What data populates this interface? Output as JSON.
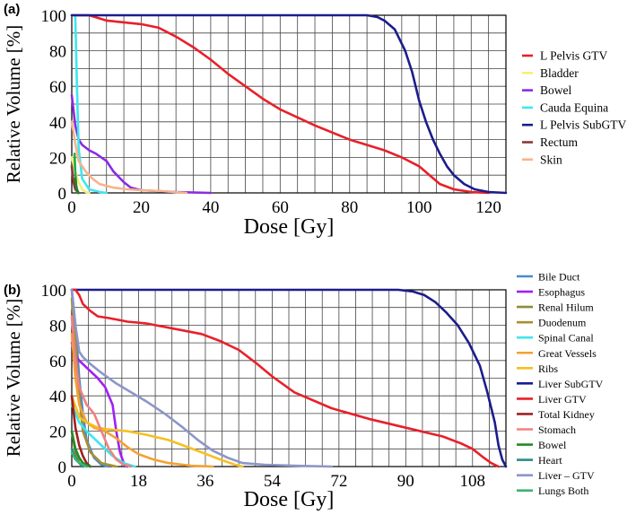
{
  "chart_data": [
    {
      "panel_label": "(a)",
      "type": "line",
      "xlabel": "Dose [Gy]",
      "ylabel": "Relative Volume [%]",
      "xlim": [
        0,
        125
      ],
      "ylim": [
        0,
        100
      ],
      "xticks": [
        0,
        20,
        40,
        60,
        80,
        100,
        120
      ],
      "yticks": [
        0,
        20,
        40,
        60,
        80,
        100
      ],
      "x_grid_step": 5,
      "y_grid_step": 10,
      "grid": true,
      "legend_position": "right",
      "series": [
        {
          "name": "L Pelvis GTV",
          "color": "#e8202a",
          "points": [
            [
              0,
              100
            ],
            [
              5,
              100
            ],
            [
              10,
              97
            ],
            [
              20,
              95
            ],
            [
              25,
              93
            ],
            [
              30,
              88
            ],
            [
              35,
              82
            ],
            [
              40,
              75
            ],
            [
              45,
              67
            ],
            [
              50,
              60
            ],
            [
              55,
              53
            ],
            [
              60,
              47
            ],
            [
              70,
              38
            ],
            [
              80,
              30
            ],
            [
              90,
              24
            ],
            [
              95,
              20
            ],
            [
              100,
              15
            ],
            [
              103,
              10
            ],
            [
              106,
              5
            ],
            [
              110,
              2
            ],
            [
              115,
              0.5
            ],
            [
              120,
              0
            ]
          ]
        },
        {
          "name": "Bladder",
          "color": "#f2f07a",
          "points": [
            [
              0,
              20
            ],
            [
              1,
              12
            ],
            [
              2,
              6
            ],
            [
              3,
              2
            ],
            [
              4,
              0.5
            ],
            [
              5,
              0
            ]
          ]
        },
        {
          "name": "Bowel",
          "color": "#8a2be2",
          "points": [
            [
              0,
              55
            ],
            [
              1,
              38
            ],
            [
              2,
              30
            ],
            [
              3,
              27
            ],
            [
              5,
              24
            ],
            [
              7,
              22
            ],
            [
              10,
              18
            ],
            [
              12,
              12
            ],
            [
              15,
              6
            ],
            [
              17,
              3
            ],
            [
              20,
              1.5
            ],
            [
              25,
              1
            ],
            [
              30,
              0.5
            ],
            [
              40,
              0
            ]
          ]
        },
        {
          "name": "Cauda Equina",
          "color": "#3ee6ee",
          "points": [
            [
              0,
              100
            ],
            [
              1,
              100
            ],
            [
              1.5,
              60
            ],
            [
              2,
              25
            ],
            [
              3,
              8
            ],
            [
              5,
              2
            ],
            [
              8,
              0.5
            ],
            [
              10,
              0
            ]
          ]
        },
        {
          "name": "L Pelvis SubGTV",
          "color": "#1c1c8c",
          "points": [
            [
              0,
              100
            ],
            [
              85,
              100
            ],
            [
              88,
              99
            ],
            [
              90,
              97
            ],
            [
              93,
              92
            ],
            [
              96,
              80
            ],
            [
              98,
              68
            ],
            [
              100,
              52
            ],
            [
              102,
              40
            ],
            [
              104,
              30
            ],
            [
              106,
              22
            ],
            [
              108,
              15
            ],
            [
              110,
              10
            ],
            [
              113,
              5
            ],
            [
              116,
              2
            ],
            [
              120,
              0.5
            ],
            [
              125,
              0
            ]
          ]
        },
        {
          "name": "Rectum",
          "color": "#8b3a3a",
          "points": [
            [
              0,
              15
            ],
            [
              0.5,
              6
            ],
            [
              1,
              2
            ],
            [
              2,
              0
            ]
          ]
        },
        {
          "name": "Skin",
          "color": "#f5b48c",
          "points": [
            [
              0,
              40
            ],
            [
              1,
              28
            ],
            [
              2,
              18
            ],
            [
              4,
              12
            ],
            [
              6,
              8
            ],
            [
              8,
              5
            ],
            [
              12,
              3
            ],
            [
              16,
              2
            ],
            [
              20,
              1.5
            ],
            [
              26,
              1
            ],
            [
              33,
              0
            ]
          ]
        },
        {
          "color": "#22aa44",
          "points": [
            [
              0.8,
              22
            ],
            [
              1,
              12
            ],
            [
              1.3,
              4
            ],
            [
              1.8,
              0
            ]
          ]
        },
        {
          "color": "#2a7a2a",
          "points": [
            [
              1,
              8
            ],
            [
              1.4,
              2
            ],
            [
              2,
              0
            ]
          ]
        }
      ]
    },
    {
      "panel_label": "(b)",
      "type": "line",
      "xlabel": "Dose [Gy]",
      "ylabel": "Relative Volume [%]",
      "xlim": [
        0,
        117
      ],
      "ylim": [
        0,
        100
      ],
      "xticks": [
        0,
        18,
        36,
        54,
        72,
        90,
        108
      ],
      "yticks": [
        0,
        20,
        40,
        60,
        80,
        100
      ],
      "x_grid_step": 4.5,
      "y_grid_step": 10,
      "grid": true,
      "legend_position": "right",
      "series": [
        {
          "name": "Bile Duct",
          "color": "#4a8ad0",
          "points": [
            [
              0,
              100
            ],
            [
              1,
              80
            ],
            [
              2,
              50
            ],
            [
              3,
              30
            ],
            [
              4,
              15
            ],
            [
              6,
              5
            ],
            [
              8,
              1
            ],
            [
              10,
              0
            ]
          ]
        },
        {
          "name": "Esophagus",
          "color": "#a020f0",
          "points": [
            [
              0,
              70
            ],
            [
              1,
              63
            ],
            [
              2,
              60
            ],
            [
              4,
              56
            ],
            [
              7,
              50
            ],
            [
              9,
              45
            ],
            [
              11,
              35
            ],
            [
              12,
              20
            ],
            [
              13,
              8
            ],
            [
              14,
              2
            ],
            [
              15,
              0
            ]
          ]
        },
        {
          "name": "Renal Hilum",
          "color": "#8c8c3a",
          "points": [
            [
              0,
              20
            ],
            [
              1,
              8
            ],
            [
              2,
              2
            ],
            [
              3,
              0
            ]
          ]
        },
        {
          "name": "Duodenum",
          "color": "#a89030",
          "points": [
            [
              0,
              95
            ],
            [
              1,
              70
            ],
            [
              2,
              40
            ],
            [
              3,
              20
            ],
            [
              5,
              8
            ],
            [
              8,
              2
            ],
            [
              12,
              0
            ]
          ]
        },
        {
          "name": "Spinal Canal",
          "color": "#3ee6ee",
          "points": [
            [
              0,
              35
            ],
            [
              2,
              25
            ],
            [
              4,
              20
            ],
            [
              8,
              12
            ],
            [
              11,
              6
            ],
            [
              14,
              2
            ],
            [
              17,
              0
            ]
          ]
        },
        {
          "name": "Great Vessels",
          "color": "#f5a030",
          "points": [
            [
              0,
              75
            ],
            [
              1,
              50
            ],
            [
              2,
              35
            ],
            [
              4,
              25
            ],
            [
              6,
              22
            ],
            [
              9,
              20
            ],
            [
              12,
              16
            ],
            [
              15,
              11
            ],
            [
              18,
              7
            ],
            [
              22,
              4
            ],
            [
              26,
              2
            ],
            [
              32,
              0.5
            ],
            [
              38,
              0
            ]
          ]
        },
        {
          "name": "Ribs",
          "color": "#f5c020",
          "points": [
            [
              0,
              40
            ],
            [
              2,
              28
            ],
            [
              4,
              25
            ],
            [
              7,
              22
            ],
            [
              10,
              21
            ],
            [
              15,
              20
            ],
            [
              20,
              18
            ],
            [
              26,
              15
            ],
            [
              30,
              12
            ],
            [
              35,
              8
            ],
            [
              40,
              4
            ],
            [
              44,
              1
            ],
            [
              46,
              0
            ]
          ]
        },
        {
          "name": "Liver SubGTV",
          "color": "#1c1c8c",
          "points": [
            [
              0,
              100
            ],
            [
              88,
              100
            ],
            [
              92,
              99
            ],
            [
              95,
              97
            ],
            [
              98,
              93
            ],
            [
              101,
              87
            ],
            [
              104,
              80
            ],
            [
              107,
              70
            ],
            [
              110,
              57
            ],
            [
              112,
              42
            ],
            [
              114,
              25
            ],
            [
              115,
              12
            ],
            [
              116,
              4
            ],
            [
              117,
              0
            ]
          ]
        },
        {
          "name": "Liver GTV",
          "color": "#e8202a",
          "points": [
            [
              0,
              100
            ],
            [
              1,
              100
            ],
            [
              2,
              97
            ],
            [
              3,
              92
            ],
            [
              5,
              88
            ],
            [
              7,
              85
            ],
            [
              10,
              84
            ],
            [
              15,
              82
            ],
            [
              20,
              81
            ],
            [
              25,
              79
            ],
            [
              30,
              77
            ],
            [
              35,
              75
            ],
            [
              40,
              71
            ],
            [
              45,
              66
            ],
            [
              50,
              58
            ],
            [
              54,
              51
            ],
            [
              60,
              42
            ],
            [
              70,
              33
            ],
            [
              80,
              27
            ],
            [
              90,
              22
            ],
            [
              100,
              17
            ],
            [
              105,
              13
            ],
            [
              108,
              10
            ],
            [
              111,
              5
            ],
            [
              113,
              2
            ],
            [
              115,
              0
            ]
          ]
        },
        {
          "name": "Total Kidney",
          "color": "#a02020",
          "points": [
            [
              0,
              40
            ],
            [
              1,
              22
            ],
            [
              2,
              12
            ],
            [
              3,
              6
            ],
            [
              4,
              2
            ],
            [
              5,
              0
            ]
          ]
        },
        {
          "name": "Stomach",
          "color": "#f08080",
          "points": [
            [
              0,
              85
            ],
            [
              1,
              60
            ],
            [
              2,
              45
            ],
            [
              4,
              35
            ],
            [
              6,
              30
            ],
            [
              8,
              20
            ],
            [
              10,
              10
            ],
            [
              12,
              4
            ],
            [
              14,
              1
            ],
            [
              16,
              0
            ]
          ]
        },
        {
          "name": "Bowel",
          "color": "#228b22",
          "points": [
            [
              0,
              20
            ],
            [
              1,
              10
            ],
            [
              2,
              5
            ],
            [
              3,
              2
            ],
            [
              5,
              0
            ]
          ]
        },
        {
          "name": "Heart",
          "color": "#2e8b8b",
          "points": [
            [
              0,
              10
            ],
            [
              1,
              5
            ],
            [
              2,
              2
            ],
            [
              3,
              0
            ]
          ]
        },
        {
          "name": "Liver – GTV",
          "color": "#8c96c8",
          "points": [
            [
              0,
              100
            ],
            [
              1,
              80
            ],
            [
              2,
              65
            ],
            [
              3,
              62
            ],
            [
              5,
              58
            ],
            [
              8,
              53
            ],
            [
              12,
              47
            ],
            [
              16,
              42
            ],
            [
              20,
              37
            ],
            [
              25,
              30
            ],
            [
              30,
              22
            ],
            [
              34,
              15
            ],
            [
              38,
              9
            ],
            [
              42,
              5
            ],
            [
              46,
              2
            ],
            [
              52,
              1
            ],
            [
              60,
              0.5
            ],
            [
              70,
              0
            ]
          ]
        },
        {
          "name": "Lungs Both",
          "color": "#3cb371",
          "points": [
            [
              0,
              8
            ],
            [
              1,
              4
            ],
            [
              2,
              2
            ],
            [
              3,
              1
            ],
            [
              4,
              0
            ]
          ]
        }
      ]
    }
  ]
}
